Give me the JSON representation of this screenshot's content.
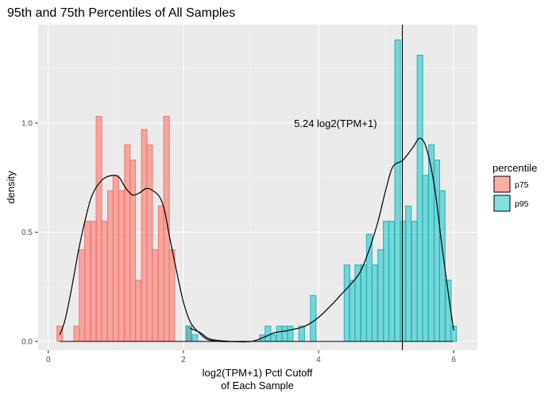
{
  "chart_data": {
    "type": "bar",
    "title": "95th and 75th Percentiles of All Samples",
    "xlabel": [
      "log2(TPM+1) Pctl Cutoff",
      "of Each Sample"
    ],
    "ylabel": "density",
    "xlim": [
      -0.15,
      6.35
    ],
    "ylim": [
      -0.04,
      1.45
    ],
    "x_ticks": [
      0,
      2,
      4,
      6
    ],
    "y_ticks": [
      0.0,
      0.5,
      1.0
    ],
    "y_tick_labels": [
      "0.0",
      "0.5",
      "1.0"
    ],
    "bin_width": 0.0833,
    "grid": true,
    "legend": {
      "title": "percentile",
      "position": "right",
      "entries": [
        "p75",
        "p95"
      ]
    },
    "series": [
      {
        "name": "p75",
        "fill": "#F8766D",
        "bins": [
          [
            0.17,
            0.07
          ],
          [
            0.42,
            0.07
          ],
          [
            0.5,
            0.42
          ],
          [
            0.58,
            0.55
          ],
          [
            0.67,
            0.55
          ],
          [
            0.75,
            1.03
          ],
          [
            0.83,
            0.55
          ],
          [
            0.92,
            0.69
          ],
          [
            1.0,
            0.76
          ],
          [
            1.08,
            0.69
          ],
          [
            1.17,
            0.9
          ],
          [
            1.25,
            0.83
          ],
          [
            1.33,
            0.28
          ],
          [
            1.42,
            0.97
          ],
          [
            1.5,
            0.9
          ],
          [
            1.58,
            0.42
          ],
          [
            1.67,
            0.62
          ],
          [
            1.75,
            1.03
          ],
          [
            1.83,
            0.42
          ],
          [
            2.08,
            0.07
          ]
        ]
      },
      {
        "name": "p95",
        "fill": "#00BFC4",
        "bins": [
          [
            2.08,
            0.07
          ],
          [
            2.17,
            0.03
          ],
          [
            3.17,
            0.03
          ],
          [
            3.25,
            0.07
          ],
          [
            3.33,
            0.03
          ],
          [
            3.42,
            0.07
          ],
          [
            3.5,
            0.07
          ],
          [
            3.58,
            0.07
          ],
          [
            3.75,
            0.07
          ],
          [
            3.92,
            0.21
          ],
          [
            4.42,
            0.35
          ],
          [
            4.5,
            0.28
          ],
          [
            4.58,
            0.35
          ],
          [
            4.67,
            0.35
          ],
          [
            4.75,
            0.49
          ],
          [
            4.83,
            0.35
          ],
          [
            4.92,
            0.42
          ],
          [
            5.0,
            0.55
          ],
          [
            5.08,
            0.55
          ],
          [
            5.17,
            1.38
          ],
          [
            5.25,
            0.55
          ],
          [
            5.33,
            0.62
          ],
          [
            5.42,
            0.55
          ],
          [
            5.5,
            1.31
          ],
          [
            5.58,
            0.76
          ],
          [
            5.67,
            0.9
          ],
          [
            5.75,
            0.83
          ],
          [
            5.83,
            0.69
          ],
          [
            5.92,
            0.28
          ],
          [
            6.0,
            0.07
          ]
        ]
      }
    ],
    "density_curves": [
      {
        "name": "p75",
        "points": [
          [
            0.17,
            0.03
          ],
          [
            0.25,
            0.1
          ],
          [
            0.35,
            0.25
          ],
          [
            0.45,
            0.42
          ],
          [
            0.55,
            0.56
          ],
          [
            0.65,
            0.67
          ],
          [
            0.8,
            0.74
          ],
          [
            0.95,
            0.76
          ],
          [
            1.05,
            0.75
          ],
          [
            1.15,
            0.7
          ],
          [
            1.25,
            0.67
          ],
          [
            1.35,
            0.68
          ],
          [
            1.45,
            0.7
          ],
          [
            1.55,
            0.69
          ],
          [
            1.65,
            0.66
          ],
          [
            1.72,
            0.6
          ],
          [
            1.8,
            0.47
          ],
          [
            1.9,
            0.32
          ],
          [
            2.0,
            0.18
          ],
          [
            2.1,
            0.09
          ],
          [
            2.2,
            0.05
          ],
          [
            2.35,
            0.01
          ],
          [
            2.55,
            0.0
          ],
          [
            2.9,
            0.0
          ]
        ]
      },
      {
        "name": "p95",
        "points": [
          [
            2.1,
            0.06
          ],
          [
            2.25,
            0.04
          ],
          [
            2.4,
            0.01
          ],
          [
            2.7,
            0.0
          ],
          [
            3.0,
            0.0
          ],
          [
            3.2,
            0.02
          ],
          [
            3.35,
            0.04
          ],
          [
            3.55,
            0.05
          ],
          [
            3.8,
            0.07
          ],
          [
            4.0,
            0.11
          ],
          [
            4.2,
            0.17
          ],
          [
            4.35,
            0.22
          ],
          [
            4.5,
            0.27
          ],
          [
            4.62,
            0.32
          ],
          [
            4.75,
            0.42
          ],
          [
            4.88,
            0.55
          ],
          [
            5.0,
            0.7
          ],
          [
            5.1,
            0.8
          ],
          [
            5.25,
            0.83
          ],
          [
            5.4,
            0.89
          ],
          [
            5.5,
            0.93
          ],
          [
            5.6,
            0.88
          ],
          [
            5.72,
            0.7
          ],
          [
            5.82,
            0.45
          ],
          [
            5.92,
            0.22
          ],
          [
            6.0,
            0.05
          ]
        ]
      }
    ],
    "vline": {
      "x": 5.24
    },
    "annotation": {
      "text": "5.24 log2(TPM+1)",
      "x": 4.25,
      "y": 1.0
    },
    "colors": {
      "panel_bg": "#EBEBEB",
      "grid_major": "#FFFFFF",
      "p75_fill": "#F8766D",
      "p95_fill": "#00BFC4"
    }
  }
}
